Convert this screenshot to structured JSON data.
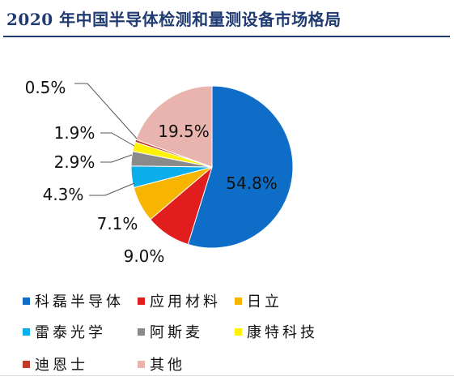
{
  "title": "2020 年中国半导体检测和量测设备市场格局",
  "chart_data": {
    "type": "pie",
    "start_angle_deg": 0,
    "direction": "clockwise",
    "slices": [
      {
        "name": "科磊半导体",
        "value": 54.8,
        "label": "54.8%",
        "color": "#0e6ec7"
      },
      {
        "name": "应用材料",
        "value": 9.0,
        "label": "9.0%",
        "color": "#e11d1d"
      },
      {
        "name": "日立",
        "value": 7.1,
        "label": "7.1%",
        "color": "#f7b500"
      },
      {
        "name": "雷泰光学",
        "value": 4.3,
        "label": "4.3%",
        "color": "#0aaeea"
      },
      {
        "name": "阿斯麦",
        "value": 2.9,
        "label": "2.9%",
        "color": "#8a8a8a"
      },
      {
        "name": "康特科技",
        "value": 1.9,
        "label": "1.9%",
        "color": "#fff200"
      },
      {
        "name": "迪恩士",
        "value": 0.5,
        "label": "0.5%",
        "color": "#c0392b"
      },
      {
        "name": "其他",
        "value": 19.5,
        "label": "19.5%",
        "color": "#e8b4ad"
      }
    ],
    "legend_position": "bottom"
  }
}
